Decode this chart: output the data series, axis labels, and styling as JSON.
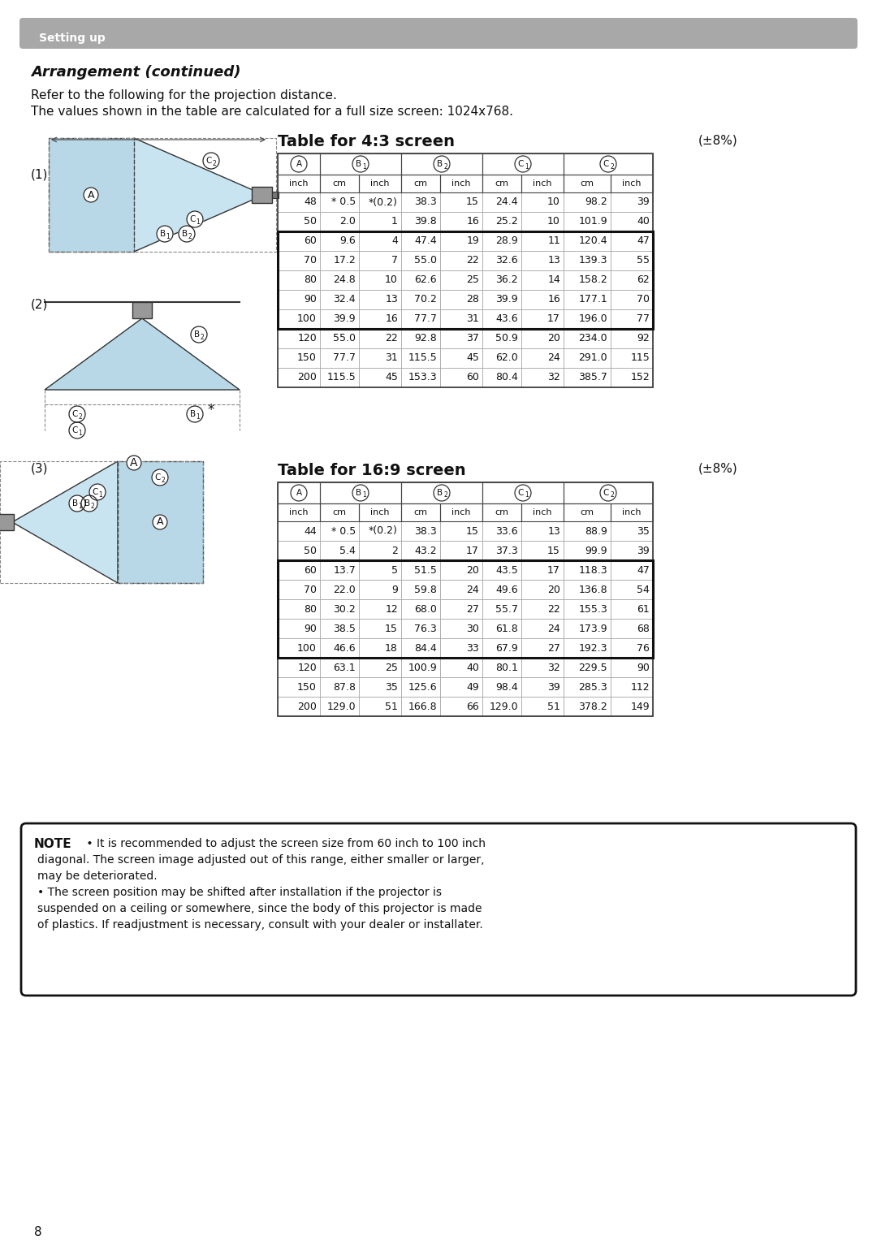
{
  "page_bg": "#ffffff",
  "header_bg": "#a8a8a8",
  "header_text": "Setting up",
  "header_text_color": "#ffffff",
  "title": "Arrangement (continued)",
  "intro_line1": "Refer to the following for the projection distance.",
  "intro_line2": "The values shown in the table are calculated for a full size screen: 1024x768.",
  "table43_title": "Table for 4:3 screen",
  "table43_tolerance": "(±8%)",
  "table169_title": "Table for 16:9 screen",
  "table169_tolerance": "(±8%)",
  "table43_data": [
    [
      "48",
      "* 0.5",
      "*(0.2)",
      "38.3",
      "15",
      "24.4",
      "10",
      "98.2",
      "39"
    ],
    [
      "50",
      "2.0",
      "1",
      "39.8",
      "16",
      "25.2",
      "10",
      "101.9",
      "40"
    ],
    [
      "60",
      "9.6",
      "4",
      "47.4",
      "19",
      "28.9",
      "11",
      "120.4",
      "47"
    ],
    [
      "70",
      "17.2",
      "7",
      "55.0",
      "22",
      "32.6",
      "13",
      "139.3",
      "55"
    ],
    [
      "80",
      "24.8",
      "10",
      "62.6",
      "25",
      "36.2",
      "14",
      "158.2",
      "62"
    ],
    [
      "90",
      "32.4",
      "13",
      "70.2",
      "28",
      "39.9",
      "16",
      "177.1",
      "70"
    ],
    [
      "100",
      "39.9",
      "16",
      "77.7",
      "31",
      "43.6",
      "17",
      "196.0",
      "77"
    ],
    [
      "120",
      "55.0",
      "22",
      "92.8",
      "37",
      "50.9",
      "20",
      "234.0",
      "92"
    ],
    [
      "150",
      "77.7",
      "31",
      "115.5",
      "45",
      "62.0",
      "24",
      "291.0",
      "115"
    ],
    [
      "200",
      "115.5",
      "45",
      "153.3",
      "60",
      "80.4",
      "32",
      "385.7",
      "152"
    ]
  ],
  "table169_data": [
    [
      "44",
      "* 0.5",
      "*(0.2)",
      "38.3",
      "15",
      "33.6",
      "13",
      "88.9",
      "35"
    ],
    [
      "50",
      "5.4",
      "2",
      "43.2",
      "17",
      "37.3",
      "15",
      "99.9",
      "39"
    ],
    [
      "60",
      "13.7",
      "5",
      "51.5",
      "20",
      "43.5",
      "17",
      "118.3",
      "47"
    ],
    [
      "70",
      "22.0",
      "9",
      "59.8",
      "24",
      "49.6",
      "20",
      "136.8",
      "54"
    ],
    [
      "80",
      "30.2",
      "12",
      "68.0",
      "27",
      "55.7",
      "22",
      "155.3",
      "61"
    ],
    [
      "90",
      "38.5",
      "15",
      "76.3",
      "30",
      "61.8",
      "24",
      "173.9",
      "68"
    ],
    [
      "100",
      "46.6",
      "18",
      "84.4",
      "33",
      "67.9",
      "27",
      "192.3",
      "76"
    ],
    [
      "120",
      "63.1",
      "25",
      "100.9",
      "40",
      "80.1",
      "32",
      "229.5",
      "90"
    ],
    [
      "150",
      "87.8",
      "35",
      "125.6",
      "49",
      "98.4",
      "39",
      "285.3",
      "112"
    ],
    [
      "200",
      "129.0",
      "51",
      "166.8",
      "66",
      "129.0",
      "51",
      "378.2",
      "149"
    ]
  ],
  "page_number": "8",
  "diagram_fill": "#b8d8e8",
  "diagram_fill2": "#c8e4f0"
}
